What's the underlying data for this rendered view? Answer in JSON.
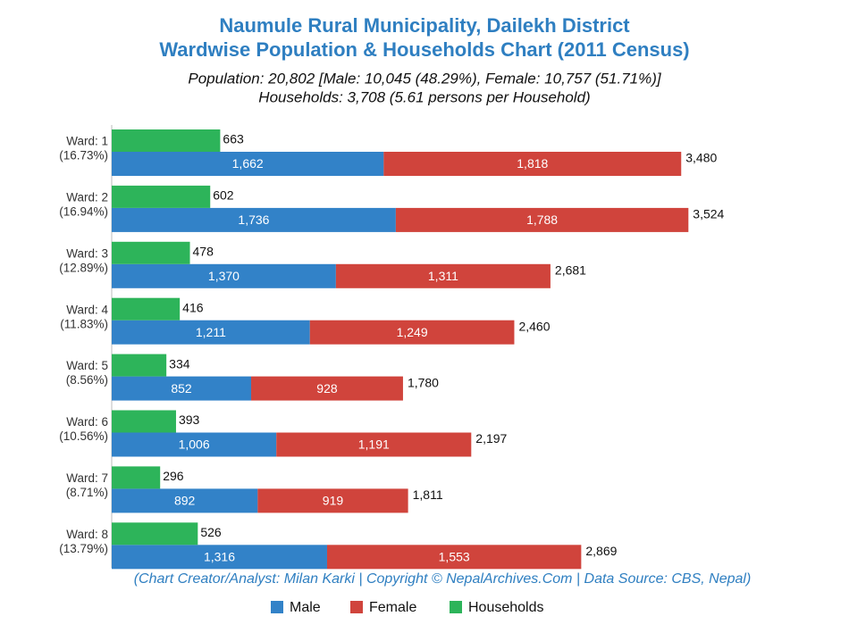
{
  "chart_data": {
    "type": "bar",
    "title": [
      "Naumule Rural Municipality, Dailekh District",
      "Wardwise Population & Households Chart (2011 Census)"
    ],
    "subtitle": [
      "Population: 20,802 [Male: 10,045 (48.29%), Female: 10,757 (51.71%)]",
      "Households: 3,708 (5.61 persons per Household)"
    ],
    "credit": "(Chart Creator/Analyst: Milan Karki | Copyright © NepalArchives.Com | Data Source: CBS, Nepal)",
    "categories": [
      "Ward: 1",
      "Ward: 2",
      "Ward: 3",
      "Ward: 4",
      "Ward: 5",
      "Ward: 6",
      "Ward: 7",
      "Ward: 8"
    ],
    "shares": [
      "(16.73%)",
      "(16.94%)",
      "(12.89%)",
      "(11.83%)",
      "(8.56%)",
      "(10.56%)",
      "(8.71%)",
      "(13.79%)"
    ],
    "series": [
      {
        "name": "Male",
        "color": "#3282c8",
        "stack": "population",
        "values": [
          1662,
          1736,
          1370,
          1211,
          852,
          1006,
          892,
          1316
        ],
        "value_labels": [
          "1,662",
          "1,736",
          "1,370",
          "1,211",
          "852",
          "1,006",
          "892",
          "1,316"
        ]
      },
      {
        "name": "Female",
        "color": "#d0443c",
        "stack": "population",
        "values": [
          1818,
          1788,
          1311,
          1249,
          928,
          1191,
          919,
          1553
        ],
        "value_labels": [
          "1,818",
          "1,788",
          "1,311",
          "1,249",
          "928",
          "1,191",
          "919",
          "1,553"
        ]
      },
      {
        "name": "Households",
        "color": "#2db45a",
        "stack": "households",
        "values": [
          663,
          602,
          478,
          416,
          334,
          393,
          296,
          526
        ]
      }
    ],
    "total_labels": [
      "3,480",
      "3,524",
      "2,681",
      "2,460",
      "1,780",
      "2,197",
      "1,811",
      "2,869"
    ],
    "xlim": [
      0,
      3850
    ]
  }
}
